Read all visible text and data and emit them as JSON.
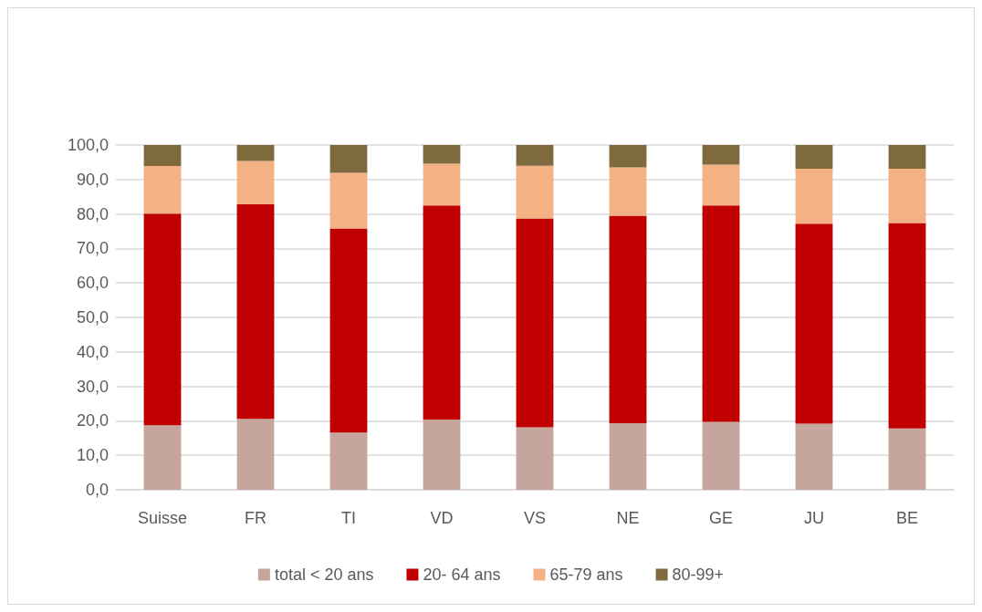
{
  "chart_data": {
    "type": "bar",
    "stacked": true,
    "categories": [
      "Suisse",
      "FR",
      "TI",
      "VD",
      "VS",
      "NE",
      "GE",
      "JU",
      "BE"
    ],
    "series": [
      {
        "name": "total < 20 ans",
        "color": "#c6a59c",
        "values": [
          18.7,
          20.6,
          16.6,
          20.4,
          18.1,
          19.3,
          19.7,
          19.2,
          17.8
        ]
      },
      {
        "name": "20- 64 ans",
        "color": "#c00000",
        "values": [
          61.4,
          62.2,
          59.2,
          62.1,
          60.6,
          60.2,
          62.8,
          58.0,
          59.6
        ]
      },
      {
        "name": "65-79 ans",
        "color": "#f4b183",
        "values": [
          13.8,
          12.6,
          16.1,
          12.1,
          15.3,
          14.0,
          11.8,
          15.9,
          15.7
        ]
      },
      {
        "name": "80-99+",
        "color": "#7f6a3e",
        "values": [
          6.1,
          4.6,
          8.1,
          5.4,
          6.0,
          6.5,
          5.7,
          6.9,
          6.9
        ]
      }
    ],
    "ylim": [
      0,
      100
    ],
    "yticks": [
      {
        "value": 0,
        "label": "0,0"
      },
      {
        "value": 10,
        "label": "10,0"
      },
      {
        "value": 20,
        "label": "20,0"
      },
      {
        "value": 30,
        "label": "30,0"
      },
      {
        "value": 40,
        "label": "40,0"
      },
      {
        "value": 50,
        "label": "50,0"
      },
      {
        "value": 60,
        "label": "60,0"
      },
      {
        "value": 70,
        "label": "70,0"
      },
      {
        "value": 80,
        "label": "80,0"
      },
      {
        "value": 90,
        "label": "90,0"
      },
      {
        "value": 100,
        "label": "100,0"
      }
    ],
    "grid": "y",
    "legend": "bottom"
  }
}
